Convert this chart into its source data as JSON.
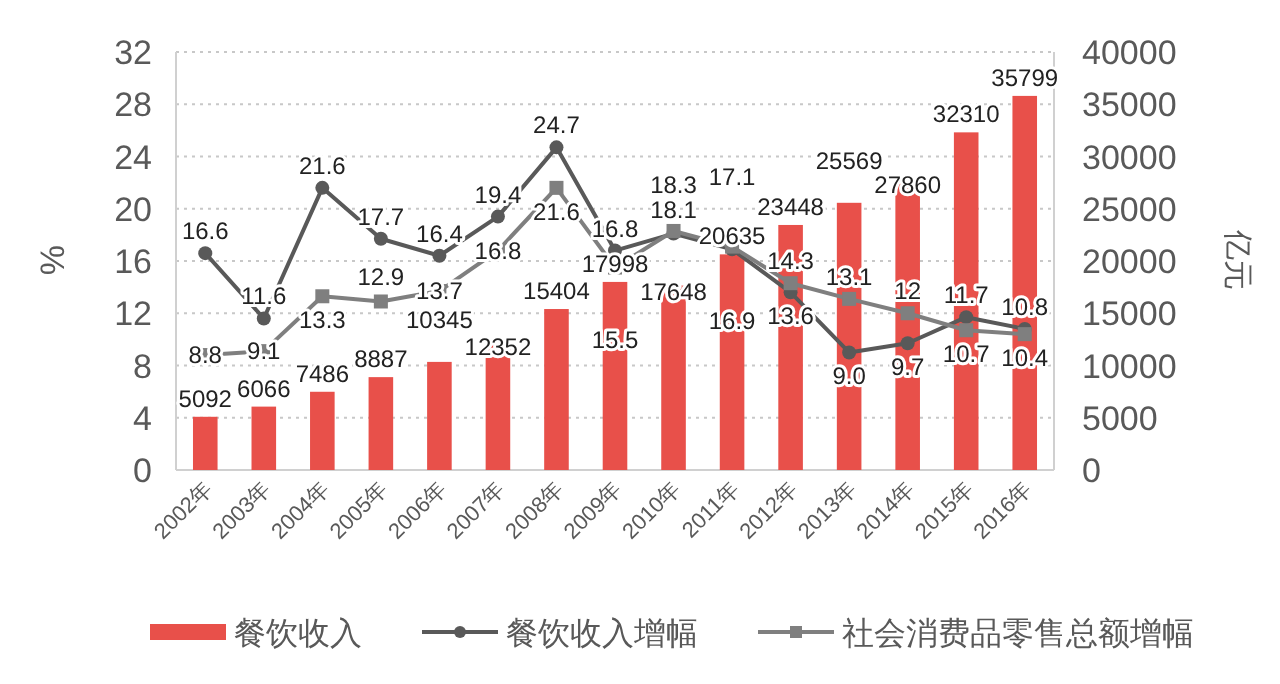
{
  "chart_data": {
    "type": "bar",
    "ylabel": "%",
    "y2label": "亿元",
    "categories": [
      "2002年",
      "2003年",
      "2004年",
      "2005年",
      "2006年",
      "2007年",
      "2008年",
      "2009年",
      "2010年",
      "2011年",
      "2012年",
      "2013年",
      "2014年",
      "2015年",
      "2016年"
    ],
    "series": [
      {
        "name": "餐饮收入",
        "axis": "y2",
        "color": "#e8504a",
        "values": [
          5092,
          6066,
          7486,
          8887,
          10345,
          12352,
          15404,
          17998,
          17648,
          20635,
          23448,
          25569,
          27860,
          32310,
          35799
        ],
        "value_labels": [
          "5092",
          "6066",
          "7486",
          "8887",
          "10345",
          "12352",
          "15404",
          "17998",
          "17648",
          "20635",
          "23448",
          "25569",
          "27860",
          "32310",
          "35799"
        ]
      },
      {
        "name": "餐饮收入增幅",
        "type": "line",
        "axis": "y",
        "color": "#595959",
        "marker": "circle",
        "values": [
          16.6,
          11.6,
          21.6,
          17.7,
          16.4,
          19.4,
          24.7,
          16.8,
          18.1,
          16.9,
          13.6,
          9.0,
          9.7,
          11.7,
          10.8
        ],
        "value_labels": [
          "16.6",
          "11.6",
          "21.6",
          "17.7",
          "16.4",
          "19.4",
          "24.7",
          "16.8",
          "18.1",
          "16.9",
          "13.6",
          "9.0",
          "9.7",
          "11.7",
          "10.8"
        ]
      },
      {
        "name": "社会消费品零售总额增幅",
        "type": "line",
        "axis": "y",
        "color": "#7f7f7f",
        "marker": "square",
        "values": [
          8.8,
          9.1,
          13.3,
          12.9,
          13.7,
          16.8,
          21.6,
          15.5,
          18.3,
          17.1,
          14.3,
          13.1,
          12,
          10.7,
          10.4
        ],
        "value_labels": [
          "8.8",
          "9.1",
          "13.3",
          "12.9",
          "13.7",
          "16.8",
          "21.6",
          "15.5",
          "18.3",
          "17.1",
          "14.3",
          "13.1",
          "12",
          "10.7",
          "10.4"
        ]
      }
    ],
    "ylim": [
      0,
      32
    ],
    "yticks": [
      0,
      4,
      8,
      12,
      16,
      20,
      24,
      28,
      32
    ],
    "y2lim": [
      0,
      40000
    ],
    "y2ticks": [
      0,
      5000,
      10000,
      15000,
      20000,
      25000,
      30000,
      35000,
      40000
    ],
    "grid": "y",
    "legend": "bottom"
  }
}
